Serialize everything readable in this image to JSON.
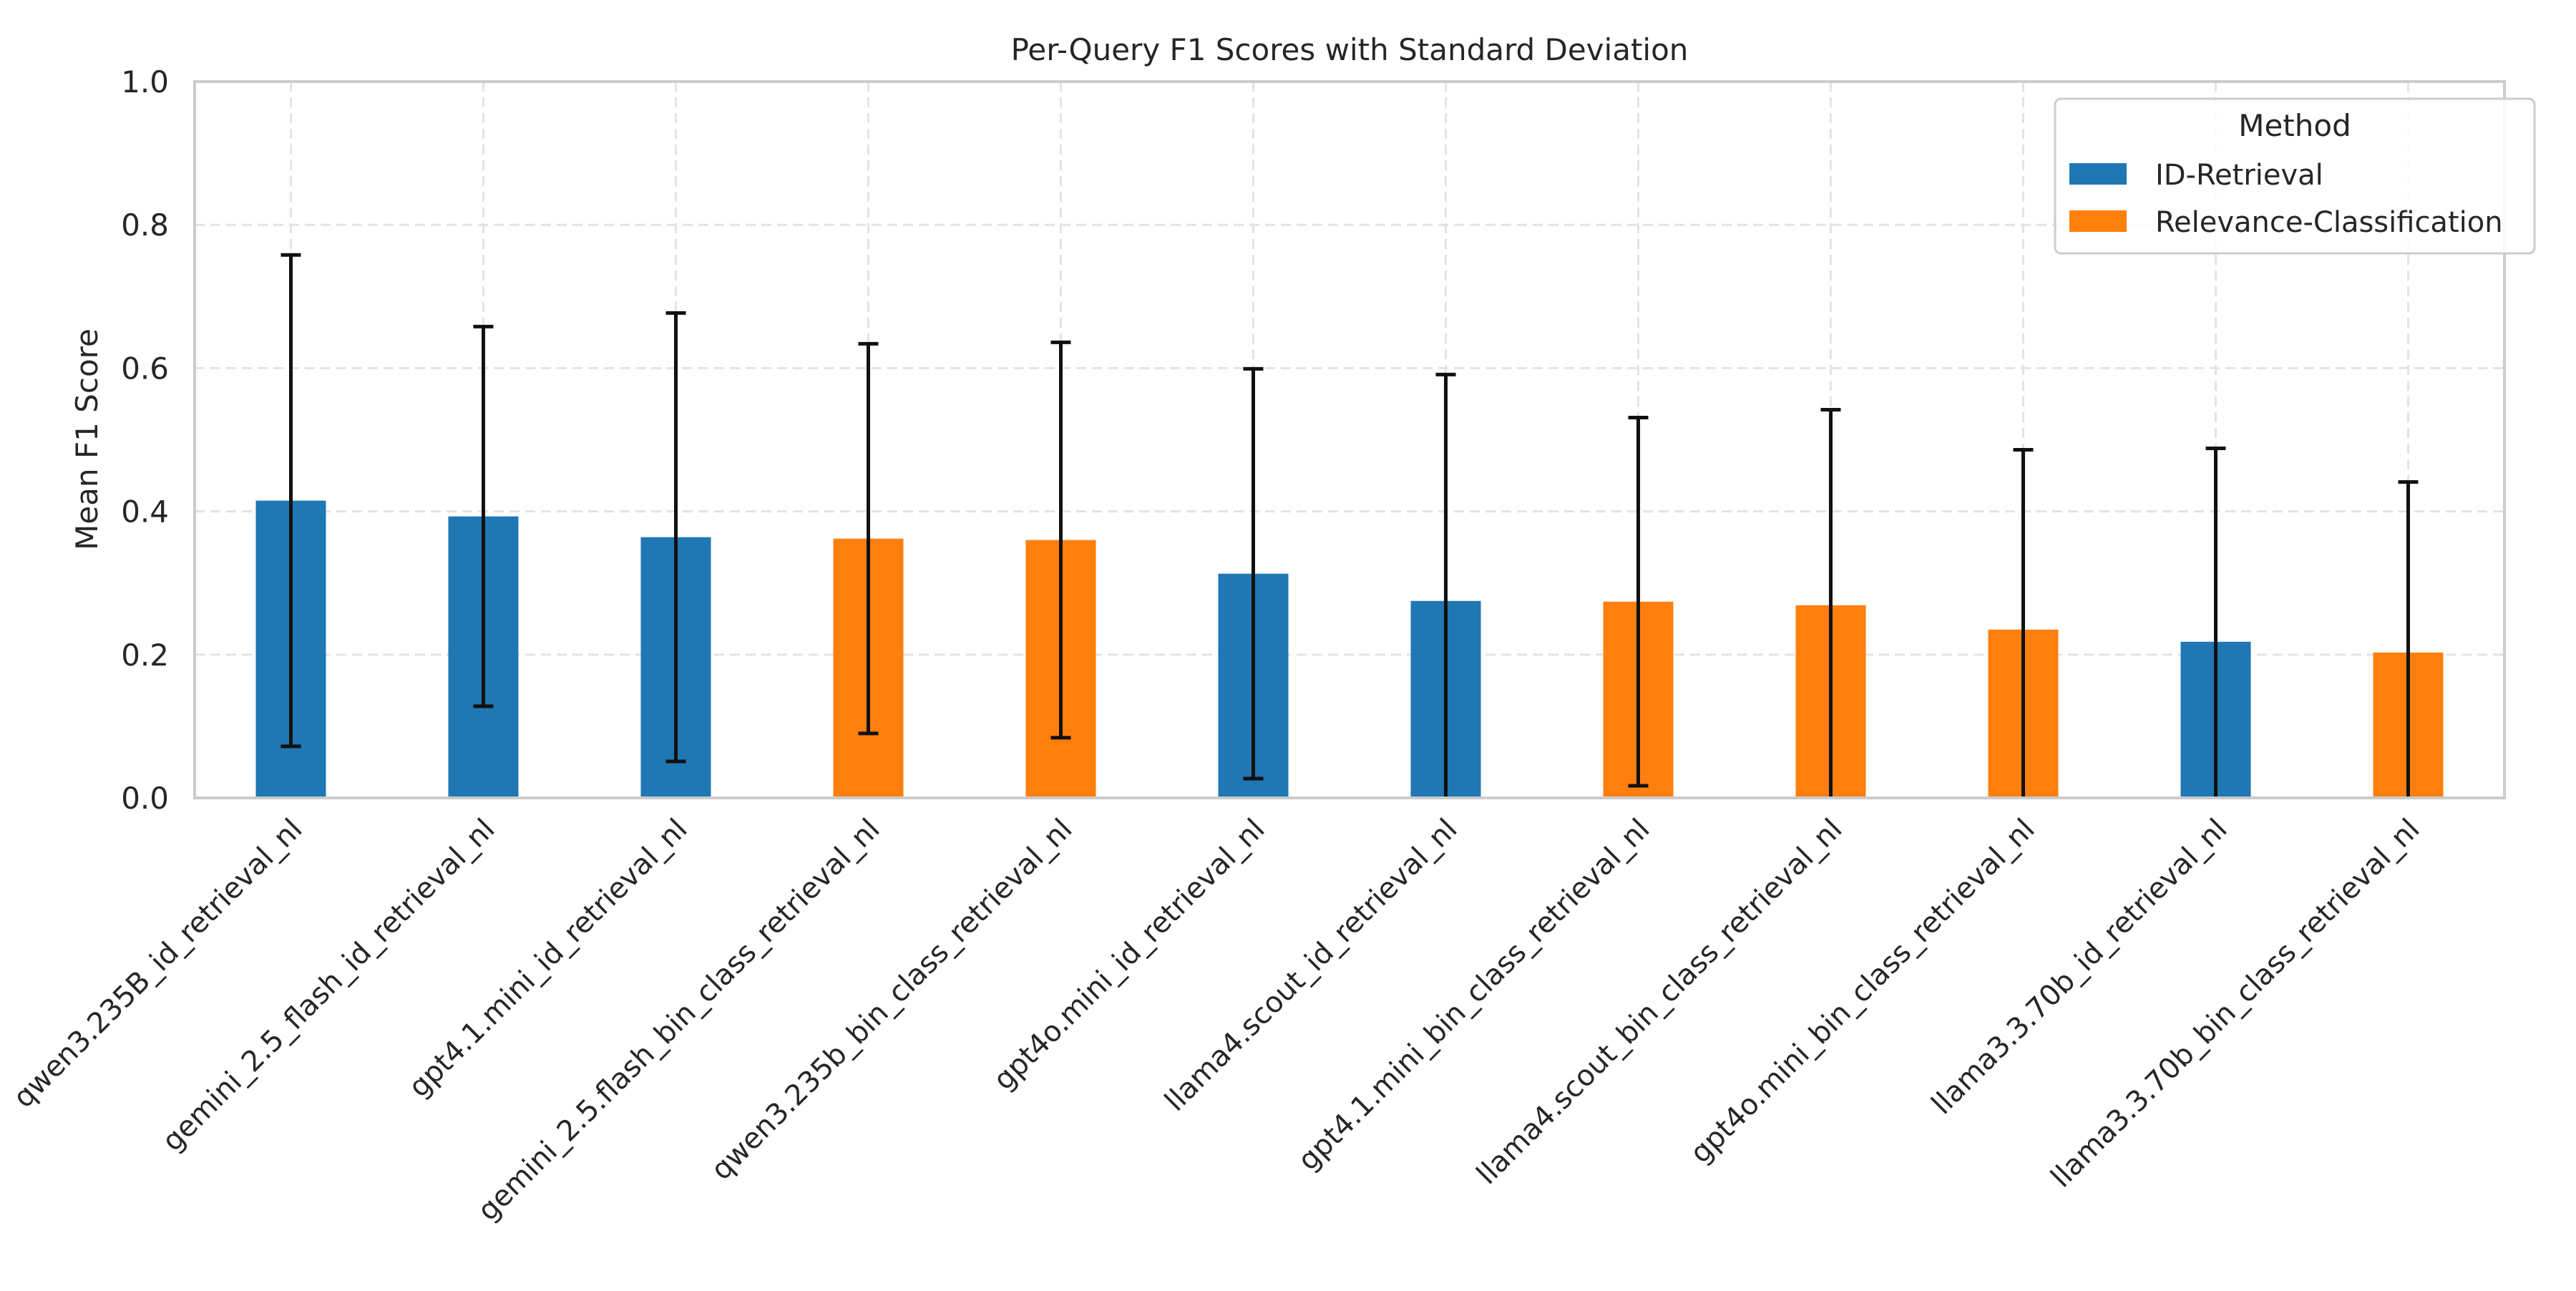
{
  "chart_data": {
    "type": "bar",
    "title": "Per-Query F1 Scores with Standard Deviation",
    "xlabel": "",
    "ylabel": "Mean F1 Score",
    "ylim": [
      0.0,
      1.0
    ],
    "yticks": [
      "0.0",
      "0.2",
      "0.4",
      "0.6",
      "0.8",
      "1.0"
    ],
    "grid": true,
    "error_bars": "standard deviation",
    "categories": [
      "qwen3.235B_id_retrieval_nl",
      "gemini_2.5_flash_id_retrieval_nl",
      "gpt4.1.mini_id_retrieval_nl",
      "gemini_2.5.flash_bin_class_retrieval_nl",
      "qwen3.235b_bin_class_retrieval_nl",
      "gpt4o.mini_id_retrieval_nl",
      "llama4.scout_id_retrieval_nl",
      "gpt4.1.mini_bin_class_retrieval_nl",
      "llama4.scout_bin_class_retrieval_nl",
      "gpt4o.mini_bin_class_retrieval_nl",
      "llama3.3.70b_id_retrieval_nl",
      "llama3.3.70b_bin_class_retrieval_nl"
    ],
    "legend": {
      "title": "Method",
      "placement": "top-right"
    },
    "series": [
      {
        "name": "ID-Retrieval",
        "color": "#1f77b4",
        "points": [
          {
            "slot": 0,
            "value": 0.415,
            "std": 0.343
          },
          {
            "slot": 1,
            "value": 0.393,
            "std": 0.265
          },
          {
            "slot": 2,
            "value": 0.364,
            "std": 0.313
          },
          {
            "slot": 5,
            "value": 0.313,
            "std": 0.286
          },
          {
            "slot": 6,
            "value": 0.275,
            "std": 0.316
          },
          {
            "slot": 10,
            "value": 0.218,
            "std": 0.27
          }
        ]
      },
      {
        "name": "Relevance-Classification",
        "color": "#ff7f0e",
        "points": [
          {
            "slot": 3,
            "value": 0.362,
            "std": 0.272
          },
          {
            "slot": 4,
            "value": 0.36,
            "std": 0.276
          },
          {
            "slot": 7,
            "value": 0.274,
            "std": 0.257
          },
          {
            "slot": 8,
            "value": 0.269,
            "std": 0.273
          },
          {
            "slot": 9,
            "value": 0.235,
            "std": 0.251
          },
          {
            "slot": 11,
            "value": 0.203,
            "std": 0.238
          }
        ]
      }
    ]
  }
}
